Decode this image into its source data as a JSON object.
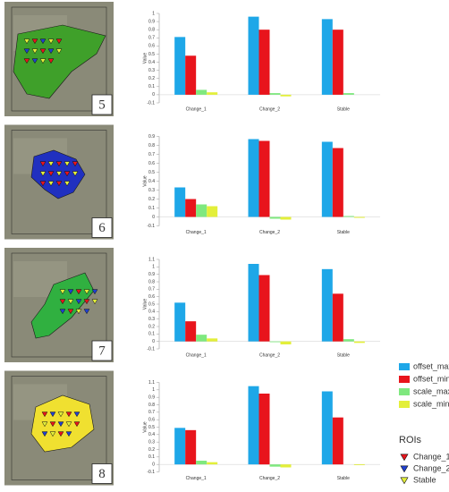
{
  "chart_data": [
    {
      "type": "bar",
      "y_label": "Value",
      "categories": [
        "Change_1",
        "Change_2",
        "Stable"
      ],
      "series": [
        {
          "name": "offset_max",
          "color": "#1ea7e8",
          "values": [
            0.71,
            0.96,
            0.93
          ]
        },
        {
          "name": "offset_min",
          "color": "#e8141c",
          "values": [
            0.48,
            0.8,
            0.8
          ]
        },
        {
          "name": "scale_max",
          "color": "#7fe87f",
          "values": [
            0.06,
            0.02,
            0.02
          ]
        },
        {
          "name": "scale_min",
          "color": "#e3ef3a",
          "values": [
            0.03,
            -0.02,
            0.0
          ]
        }
      ],
      "ylim": [
        -0.1,
        1.0
      ],
      "yticks": [
        -0.1,
        0,
        0.1,
        0.2,
        0.3,
        0.4,
        0.5,
        0.6,
        0.7,
        0.8,
        0.9,
        1
      ]
    },
    {
      "type": "bar",
      "y_label": "Value",
      "categories": [
        "Change_1",
        "Change_2",
        "Stable"
      ],
      "series": [
        {
          "name": "offset_max",
          "color": "#1ea7e8",
          "values": [
            0.33,
            0.87,
            0.84
          ]
        },
        {
          "name": "offset_min",
          "color": "#e8141c",
          "values": [
            0.2,
            0.85,
            0.77
          ]
        },
        {
          "name": "scale_max",
          "color": "#7fe87f",
          "values": [
            0.14,
            -0.02,
            0.01
          ]
        },
        {
          "name": "scale_min",
          "color": "#e3ef3a",
          "values": [
            0.12,
            -0.03,
            -0.01
          ]
        }
      ],
      "ylim": [
        -0.1,
        0.9
      ],
      "yticks": [
        -0.1,
        0,
        0.1,
        0.2,
        0.3,
        0.4,
        0.5,
        0.6,
        0.7,
        0.8,
        0.9
      ]
    },
    {
      "type": "bar",
      "y_label": "Value",
      "categories": [
        "Change_1",
        "Change_2",
        "Stable"
      ],
      "series": [
        {
          "name": "offset_max",
          "color": "#1ea7e8",
          "values": [
            0.52,
            1.04,
            0.97
          ]
        },
        {
          "name": "offset_min",
          "color": "#e8141c",
          "values": [
            0.27,
            0.89,
            0.64
          ]
        },
        {
          "name": "scale_max",
          "color": "#7fe87f",
          "values": [
            0.09,
            -0.01,
            0.03
          ]
        },
        {
          "name": "scale_min",
          "color": "#e3ef3a",
          "values": [
            0.04,
            -0.04,
            -0.02
          ]
        }
      ],
      "ylim": [
        -0.1,
        1.1
      ],
      "yticks": [
        -0.1,
        0,
        0.1,
        0.2,
        0.3,
        0.4,
        0.5,
        0.6,
        0.7,
        0.8,
        0.9,
        1,
        1.1
      ]
    },
    {
      "type": "bar",
      "y_label": "Value",
      "categories": [
        "Change_1",
        "Change_2",
        "Stable"
      ],
      "series": [
        {
          "name": "offset_max",
          "color": "#1ea7e8",
          "values": [
            0.49,
            1.05,
            0.98
          ]
        },
        {
          "name": "offset_min",
          "color": "#e8141c",
          "values": [
            0.46,
            0.95,
            0.63
          ]
        },
        {
          "name": "scale_max",
          "color": "#7fe87f",
          "values": [
            0.05,
            -0.03,
            0.0
          ]
        },
        {
          "name": "scale_min",
          "color": "#e3ef3a",
          "values": [
            0.03,
            -0.04,
            -0.01
          ]
        }
      ],
      "ylim": [
        -0.1,
        1.1
      ],
      "yticks": [
        -0.1,
        0,
        0.1,
        0.2,
        0.3,
        0.4,
        0.5,
        0.6,
        0.7,
        0.8,
        0.9,
        1,
        1.1
      ]
    }
  ],
  "panels": [
    {
      "label": "5"
    },
    {
      "label": "6"
    },
    {
      "label": "7"
    },
    {
      "label": "8"
    }
  ],
  "rois": {
    "title": "ROIs",
    "items": [
      {
        "name": "Change_1",
        "color": "#e8141c"
      },
      {
        "name": "Change_2",
        "color": "#2040d0"
      },
      {
        "name": "Stable",
        "color": "#e3ef3a"
      }
    ]
  }
}
